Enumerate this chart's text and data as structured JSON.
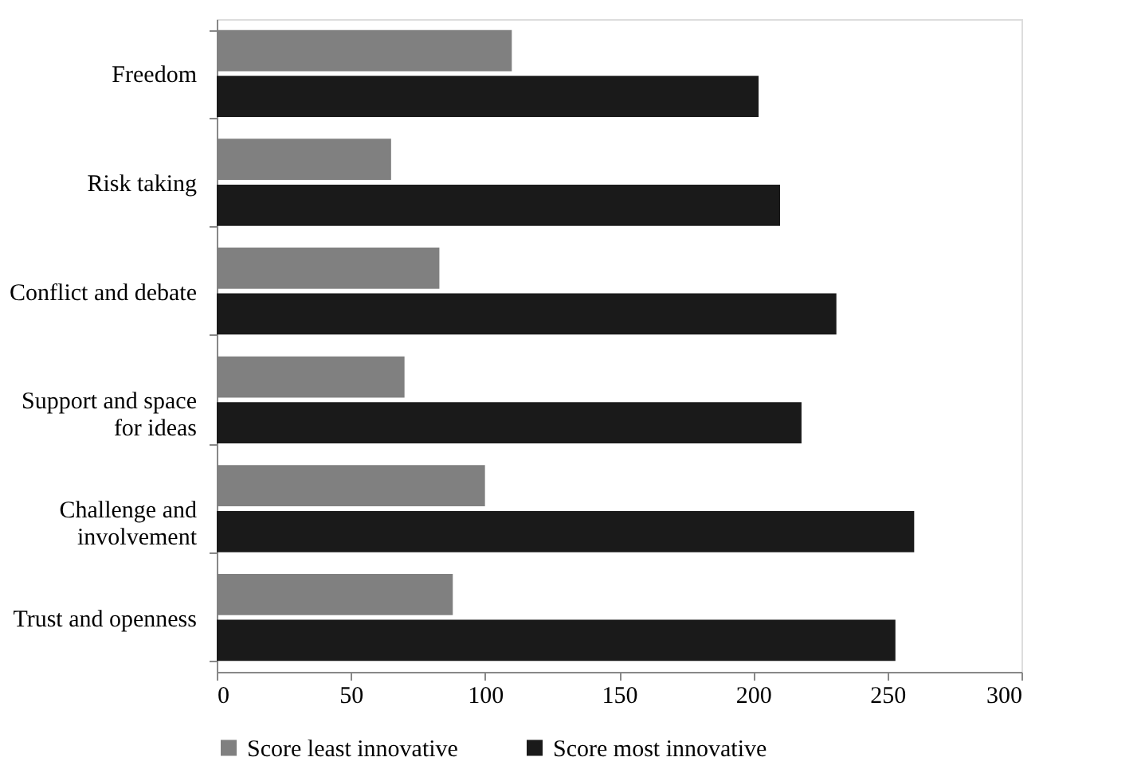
{
  "chart_data": {
    "type": "bar",
    "orientation": "horizontal",
    "categories": [
      "Freedom",
      "Risk taking",
      "Conflict and debate",
      "Support and space for ideas",
      "Challenge and involvement",
      "Trust and openness"
    ],
    "series": [
      {
        "name": "Score least innovative",
        "color": "#808080",
        "values": [
          110,
          65,
          83,
          70,
          100,
          88
        ]
      },
      {
        "name": "Score most innovative",
        "color": "#1a1a1a",
        "values": [
          202,
          210,
          231,
          218,
          260,
          253
        ]
      }
    ],
    "xlim": [
      0,
      300
    ],
    "xticks": [
      0,
      50,
      100,
      150,
      200,
      250,
      300
    ],
    "grid": false,
    "legend": "bottom"
  }
}
